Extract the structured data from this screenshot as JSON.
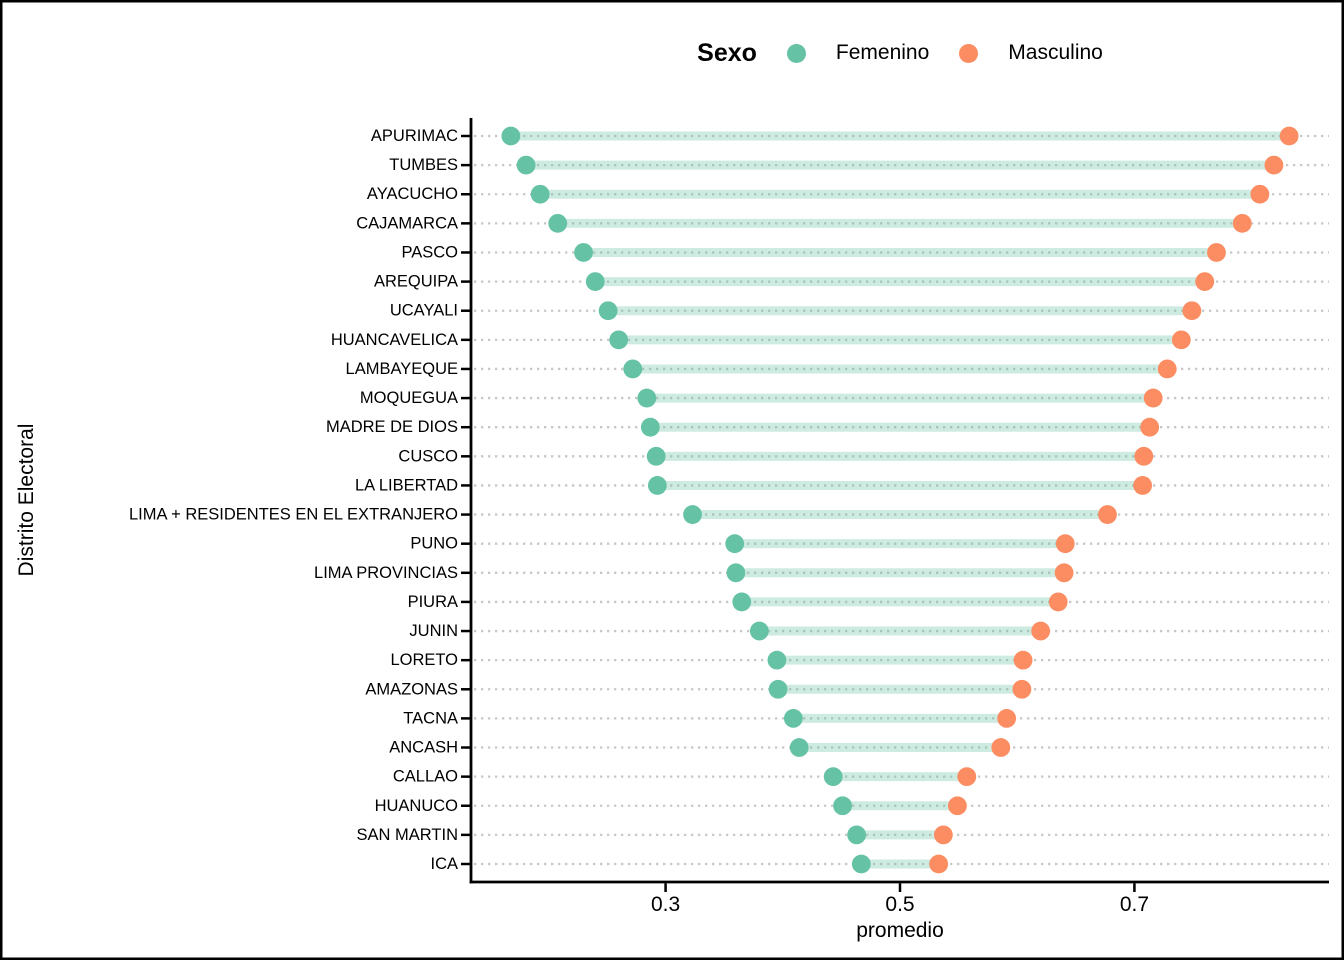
{
  "figure": {
    "legend": {
      "title": "Sexo",
      "items": [
        {
          "label": "Femenino",
          "color": "#66C2A5"
        },
        {
          "label": "Masculino",
          "color": "#FC8D62"
        }
      ]
    },
    "x_axis": {
      "title": "promedio",
      "tick_labels": [
        "0.3",
        "0.5",
        "0.7"
      ]
    },
    "y_axis": {
      "title": "Distrito Electoral"
    }
  },
  "chart_data": {
    "type": "scatter",
    "variant": "dumbbell",
    "orientation": "horizontal",
    "title": "",
    "xlabel": "promedio",
    "ylabel": "Distrito Electoral",
    "legend_title": "Sexo",
    "legend_position": "top-center",
    "grid": "horizontal dotted lines per category, no vertical grid",
    "xlim": [
      0.134,
      0.866
    ],
    "x_ticks": [
      0.3,
      0.5,
      0.7
    ],
    "categories": [
      "APURIMAC",
      "TUMBES",
      "AYACUCHO",
      "CAJAMARCA",
      "PASCO",
      "AREQUIPA",
      "UCAYALI",
      "HUANCAVELICA",
      "LAMBAYEQUE",
      "MOQUEGUA",
      "MADRE DE DIOS",
      "CUSCO",
      "LA LIBERTAD",
      "LIMA + RESIDENTES EN EL EXTRANJERO",
      "PUNO",
      "LIMA PROVINCIAS",
      "PIURA",
      "JUNIN",
      "LORETO",
      "AMAZONAS",
      "TACNA",
      "ANCASH",
      "CALLAO",
      "HUANUCO",
      "SAN MARTIN",
      "ICA"
    ],
    "series": [
      {
        "name": "Femenino",
        "color": "#66C2A5",
        "values": [
          0.168,
          0.181,
          0.193,
          0.208,
          0.23,
          0.24,
          0.251,
          0.26,
          0.272,
          0.284,
          0.287,
          0.292,
          0.293,
          0.323,
          0.359,
          0.36,
          0.365,
          0.38,
          0.395,
          0.396,
          0.409,
          0.414,
          0.443,
          0.451,
          0.463,
          0.467
        ]
      },
      {
        "name": "Masculino",
        "color": "#FC8D62",
        "values": [
          0.832,
          0.819,
          0.807,
          0.792,
          0.77,
          0.76,
          0.749,
          0.74,
          0.728,
          0.716,
          0.713,
          0.708,
          0.707,
          0.677,
          0.641,
          0.64,
          0.635,
          0.62,
          0.605,
          0.604,
          0.591,
          0.586,
          0.557,
          0.549,
          0.537,
          0.533
        ]
      }
    ],
    "connector_color": "rgba(102,194,165,0.32)",
    "grid_color": "#C7C7C7",
    "axis_color": "#000000"
  }
}
